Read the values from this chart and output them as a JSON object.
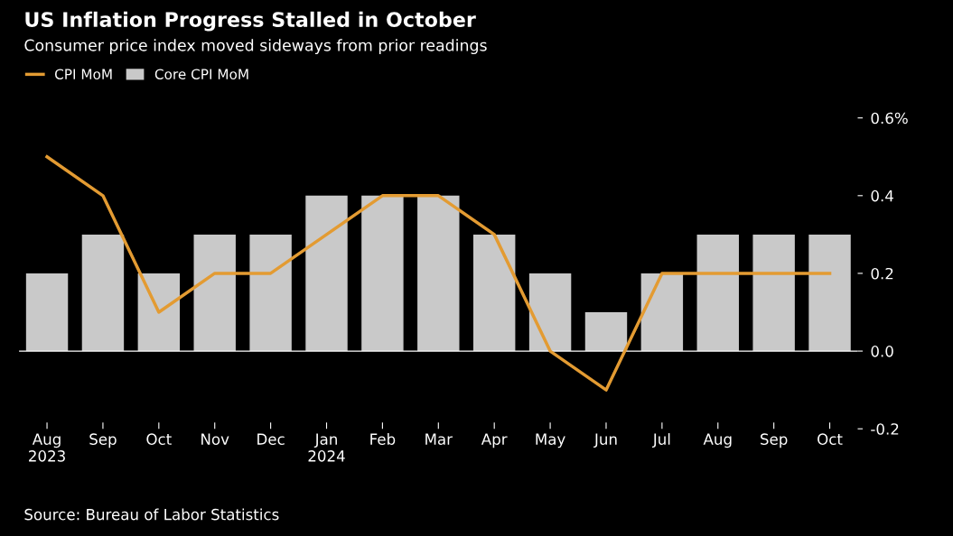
{
  "chart_data": {
    "type": "bar",
    "title": "US Inflation Progress Stalled in October",
    "subtitle": "Consumer price index moved sideways from prior readings",
    "categories": [
      "Aug\n2023",
      "Sep",
      "Oct",
      "Nov",
      "Dec",
      "Jan\n2024",
      "Feb",
      "Mar",
      "Apr",
      "May",
      "Jun",
      "Jul",
      "Aug",
      "Sep",
      "Oct"
    ],
    "series": [
      {
        "name": "CPI MoM",
        "type": "line",
        "color": "#e39b32",
        "values": [
          0.5,
          0.4,
          0.1,
          0.2,
          0.2,
          0.3,
          0.4,
          0.4,
          0.3,
          0.0,
          -0.1,
          0.2,
          0.2,
          0.2,
          0.2
        ]
      },
      {
        "name": "Core CPI MoM",
        "color": "#c9c9c9",
        "values": [
          0.2,
          0.3,
          0.2,
          0.3,
          0.3,
          0.4,
          0.4,
          0.4,
          0.3,
          0.2,
          0.1,
          0.2,
          0.3,
          0.3,
          0.3
        ]
      }
    ],
    "ylim": [
      -0.2,
      0.6
    ],
    "yticks": [
      {
        "value": 0.6,
        "label": "0.6%"
      },
      0.4,
      0.2,
      {
        "value": 0,
        "label": "0.0"
      },
      -0.2
    ],
    "ref_lines": [
      {
        "axis": "y",
        "value": 0,
        "color": "#ffffff"
      }
    ],
    "grid": false,
    "legend": "top left",
    "annotations": [
      "Source: Bureau of Labor Statistics"
    ]
  }
}
